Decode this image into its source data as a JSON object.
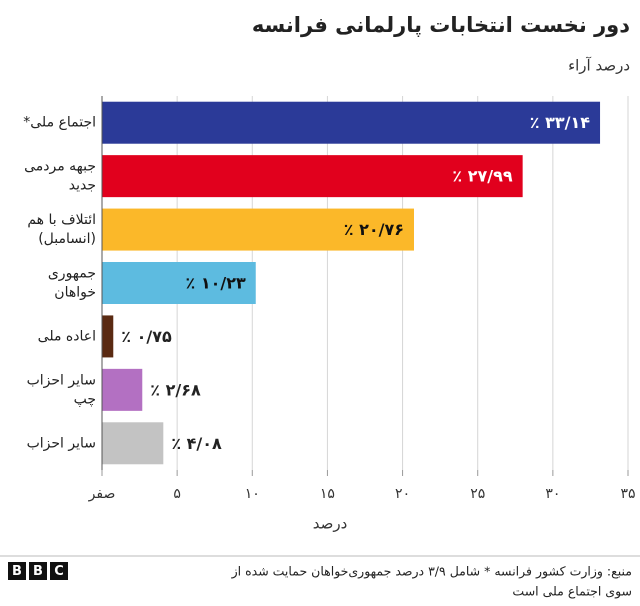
{
  "chart_data": {
    "type": "barh",
    "title": "دور نخست انتخابات پارلمانی فرانسه",
    "subtitle": "درصد آراء",
    "xlabel": "درصد",
    "categories": [
      [
        "اجتماع ملی*"
      ],
      [
        "جبهه مردمی",
        "جدید"
      ],
      [
        "ائتلاف با هم",
        "(انسامبل)"
      ],
      [
        "جمهوری",
        "خواهان"
      ],
      [
        "اعاده ملی"
      ],
      [
        "سایر احزاب",
        "چپ"
      ],
      [
        "سایر احزاب"
      ]
    ],
    "values": [
      33.14,
      27.99,
      20.76,
      10.23,
      0.75,
      2.68,
      4.08
    ],
    "value_labels": [
      "٪ ۳۳/۱۴",
      "٪ ۲۷/۹۹",
      "٪ ۲۰/۷۶",
      "٪ ۱۰/۲۳",
      "٪ ۰/۷۵",
      "٪ ۲/۶۸",
      "٪ ۴/۰۸"
    ],
    "colors": [
      "#2b3a98",
      "#e1001d",
      "#fbb829",
      "#5dbbe0",
      "#5a2a12",
      "#b370c2",
      "#c3c3c3"
    ],
    "xlim": [
      0,
      35
    ],
    "xticks": [
      {
        "value": 0,
        "label": "صفر"
      },
      {
        "value": 5,
        "label": "۵"
      },
      {
        "value": 10,
        "label": "۱۰"
      },
      {
        "value": 15,
        "label": "۱۵"
      },
      {
        "value": 20,
        "label": "۲۰"
      },
      {
        "value": 25,
        "label": "۲۵"
      },
      {
        "value": 30,
        "label": "۳۰"
      },
      {
        "value": 35,
        "label": "۳۵"
      }
    ],
    "grid": true,
    "source": [
      "منبع: وزارت کشور فرانسه * شامل ۳/۹ درصد جمهوری‌خواهان حمایت شده از",
      "سوی اجتماع ملی است"
    ],
    "logo": [
      "B",
      "B",
      "C"
    ]
  }
}
